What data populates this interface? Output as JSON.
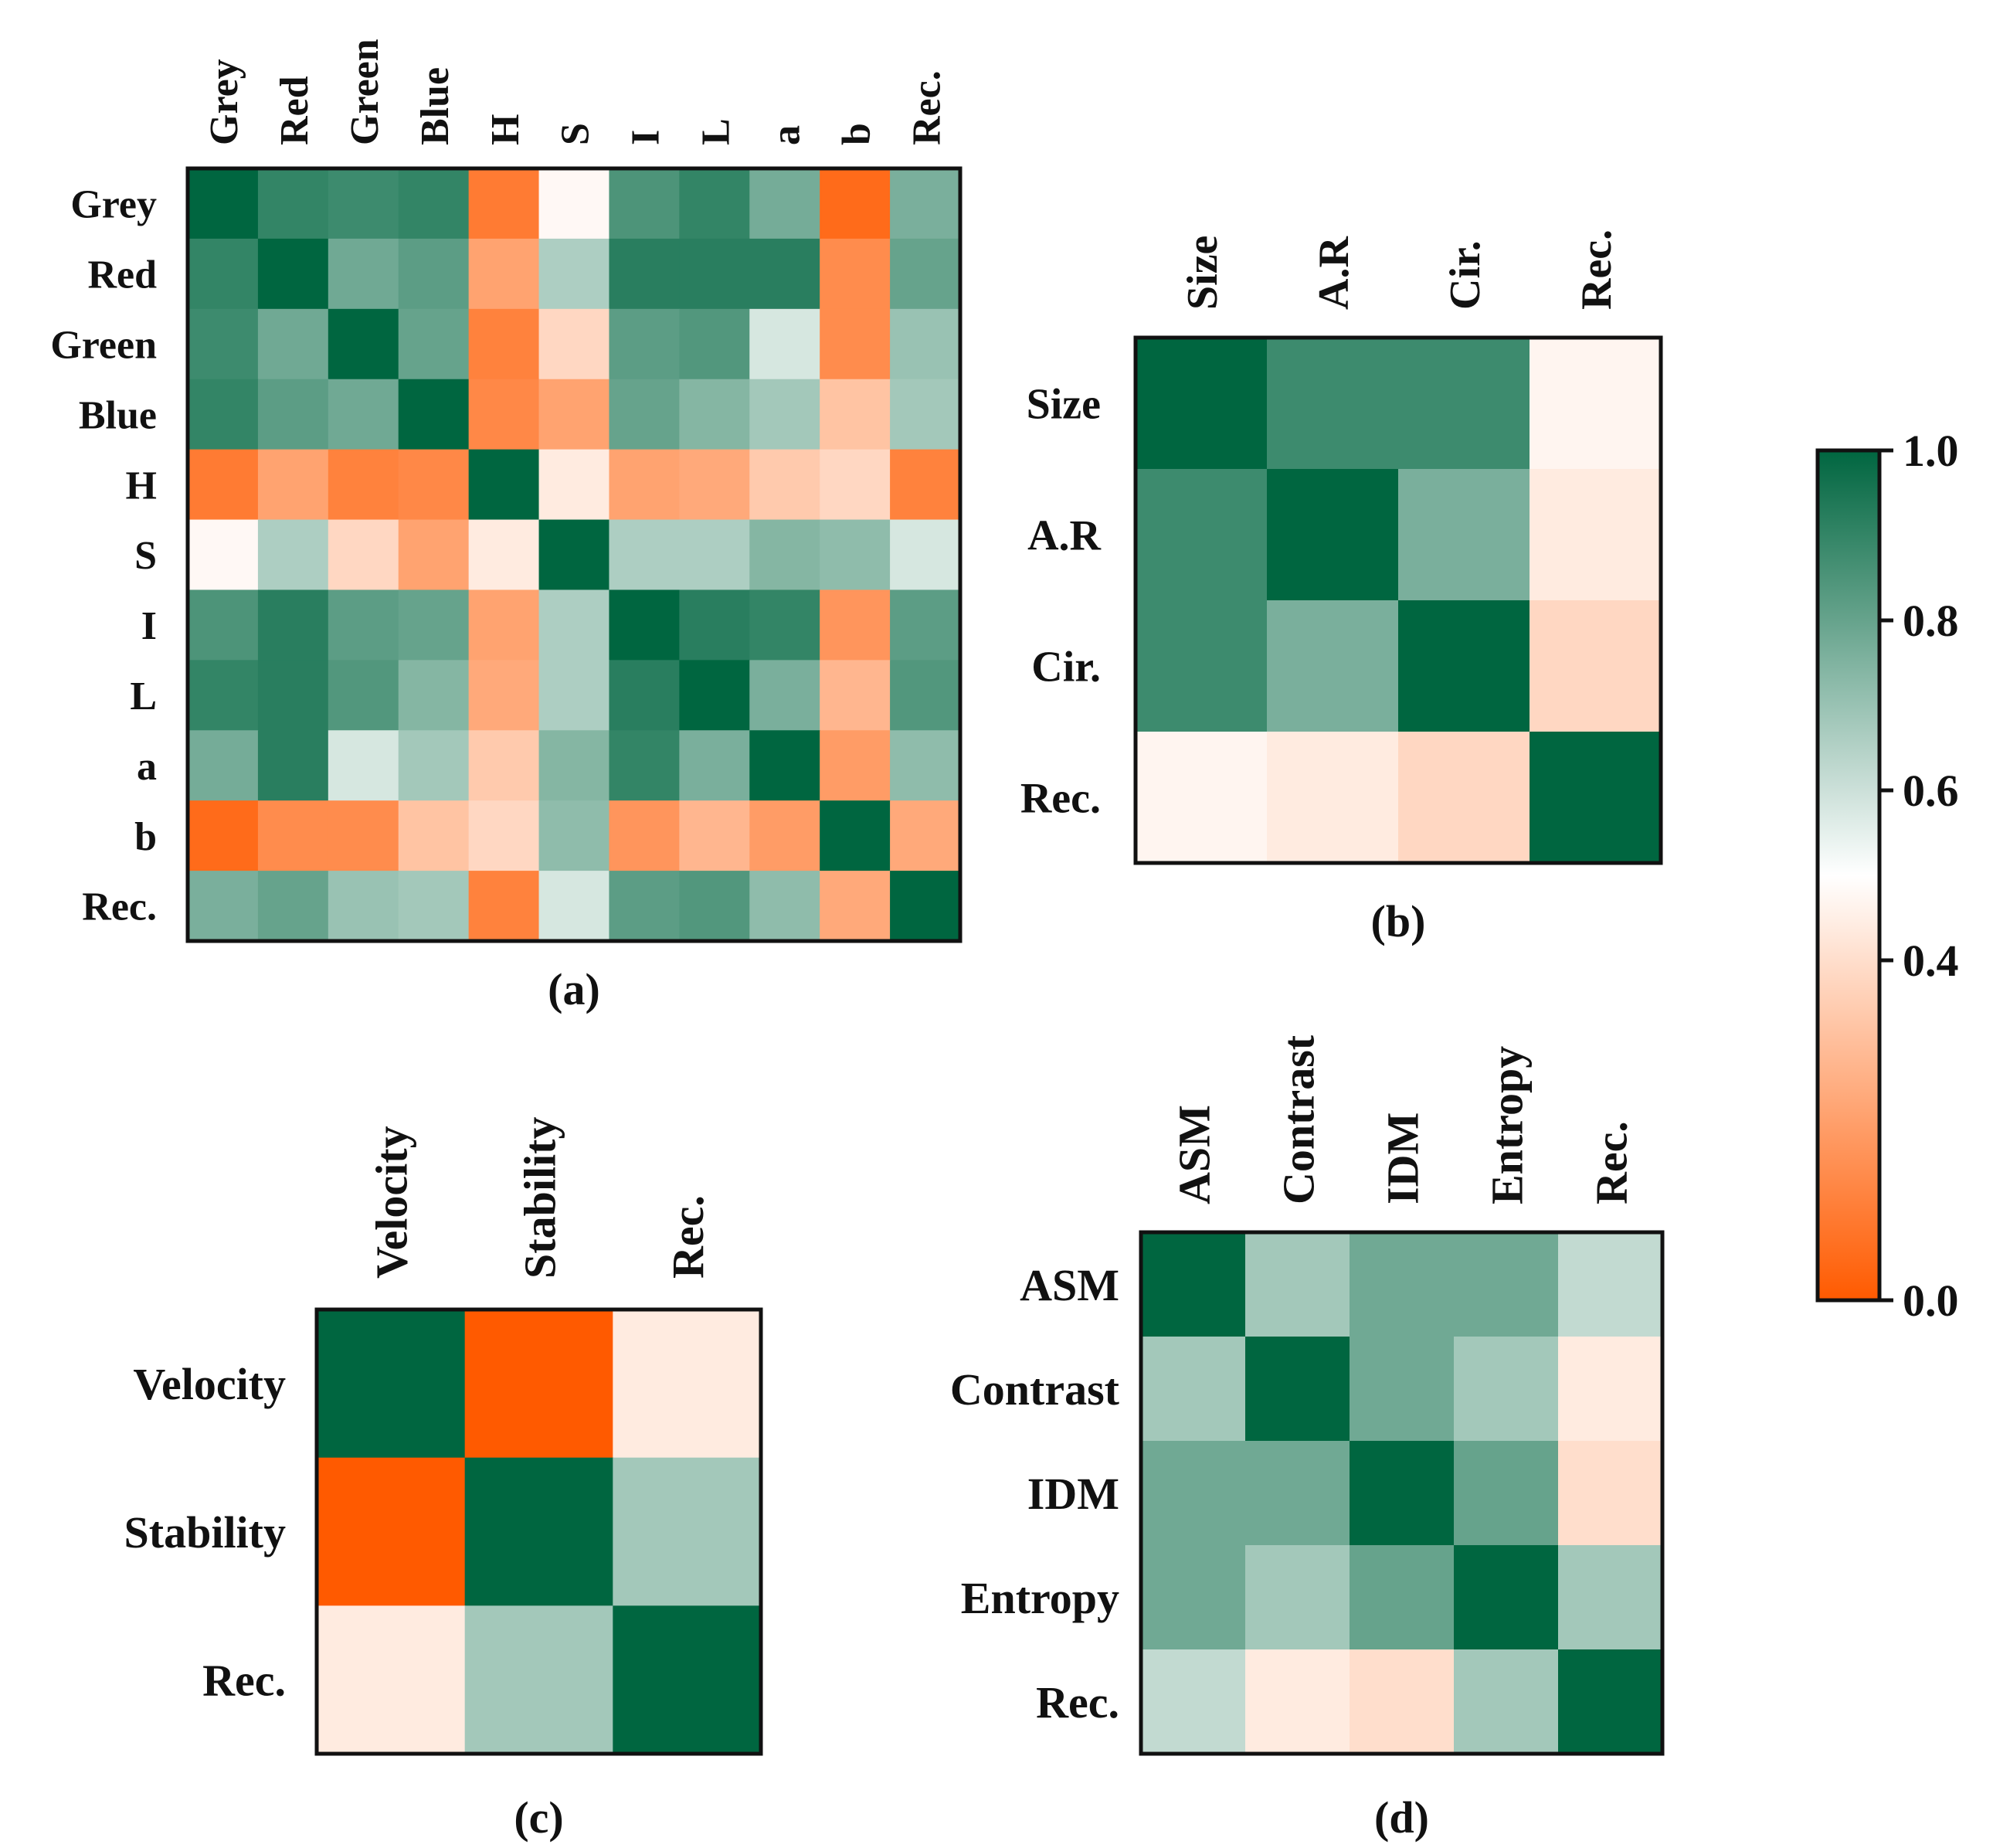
{
  "figure": {
    "colormap": {
      "low": "#ff5a00",
      "mid": "#ffffff",
      "high": "#006640"
    },
    "colorbar": {
      "ticks": [
        "1.0",
        "0.8",
        "0.6",
        "0.4",
        "0.0"
      ],
      "min": 0.0,
      "max": 1.0
    }
  },
  "chart_data": [
    {
      "type": "heatmap",
      "panel": "a",
      "caption": "(a)",
      "col_labels": [
        "Grey",
        "Red",
        "Green",
        "Blue",
        "H",
        "S",
        "I",
        "L",
        "a",
        "b",
        "Rec."
      ],
      "row_labels": [
        "Grey",
        "Red",
        "Green",
        "Blue",
        "H",
        "S",
        "I",
        "L",
        "a",
        "b",
        "Rec."
      ],
      "values": [
        [
          1.0,
          0.9,
          0.88,
          0.9,
          0.1,
          0.48,
          0.85,
          0.9,
          0.77,
          0.05,
          0.76
        ],
        [
          0.9,
          1.0,
          0.78,
          0.82,
          0.22,
          0.66,
          0.92,
          0.92,
          0.92,
          0.15,
          0.8
        ],
        [
          0.88,
          0.78,
          1.0,
          0.8,
          0.12,
          0.38,
          0.82,
          0.84,
          0.58,
          0.15,
          0.7
        ],
        [
          0.9,
          0.82,
          0.78,
          1.0,
          0.14,
          0.22,
          0.8,
          0.74,
          0.68,
          0.32,
          0.68
        ],
        [
          0.1,
          0.22,
          0.12,
          0.14,
          1.0,
          0.44,
          0.22,
          0.24,
          0.34,
          0.38,
          0.12
        ],
        [
          0.48,
          0.66,
          0.38,
          0.22,
          0.44,
          1.0,
          0.66,
          0.66,
          0.74,
          0.72,
          0.58
        ],
        [
          0.85,
          0.92,
          0.82,
          0.8,
          0.22,
          0.66,
          1.0,
          0.92,
          0.9,
          0.18,
          0.82
        ],
        [
          0.9,
          0.92,
          0.84,
          0.74,
          0.24,
          0.66,
          0.92,
          1.0,
          0.76,
          0.28,
          0.84
        ],
        [
          0.77,
          0.92,
          0.58,
          0.68,
          0.34,
          0.74,
          0.9,
          0.76,
          1.0,
          0.2,
          0.72
        ],
        [
          0.05,
          0.15,
          0.15,
          0.32,
          0.38,
          0.72,
          0.18,
          0.28,
          0.2,
          1.0,
          0.24
        ],
        [
          0.76,
          0.8,
          0.7,
          0.68,
          0.12,
          0.58,
          0.82,
          0.84,
          0.72,
          0.24,
          1.0
        ]
      ]
    },
    {
      "type": "heatmap",
      "panel": "b",
      "caption": "(b)",
      "col_labels": [
        "Size",
        "A.R",
        "Cir.",
        "Rec."
      ],
      "row_labels": [
        "Size",
        "A.R",
        "Cir.",
        "Rec."
      ],
      "values": [
        [
          1.0,
          0.88,
          0.88,
          0.47
        ],
        [
          0.88,
          1.0,
          0.76,
          0.44
        ],
        [
          0.88,
          0.76,
          1.0,
          0.38
        ],
        [
          0.47,
          0.44,
          0.38,
          1.0
        ]
      ]
    },
    {
      "type": "heatmap",
      "panel": "c",
      "caption": "(c)",
      "col_labels": [
        "Velocity",
        "Stability",
        "Rec."
      ],
      "row_labels": [
        "Velocity",
        "Stability",
        "Rec."
      ],
      "values": [
        [
          1.0,
          0.0,
          0.44
        ],
        [
          0.0,
          1.0,
          0.68
        ],
        [
          0.44,
          0.68,
          1.0
        ]
      ]
    },
    {
      "type": "heatmap",
      "panel": "d",
      "caption": "(d)",
      "col_labels": [
        "ASM",
        "Contrast",
        "IDM",
        "Entropy",
        "Rec."
      ],
      "row_labels": [
        "ASM",
        "Contrast",
        "IDM",
        "Entropy",
        "Rec."
      ],
      "values": [
        [
          1.0,
          0.68,
          0.78,
          0.78,
          0.62
        ],
        [
          0.68,
          1.0,
          0.78,
          0.68,
          0.44
        ],
        [
          0.78,
          0.78,
          1.0,
          0.8,
          0.4
        ],
        [
          0.78,
          0.68,
          0.8,
          1.0,
          0.68
        ],
        [
          0.62,
          0.44,
          0.4,
          0.68,
          1.0
        ]
      ]
    }
  ]
}
